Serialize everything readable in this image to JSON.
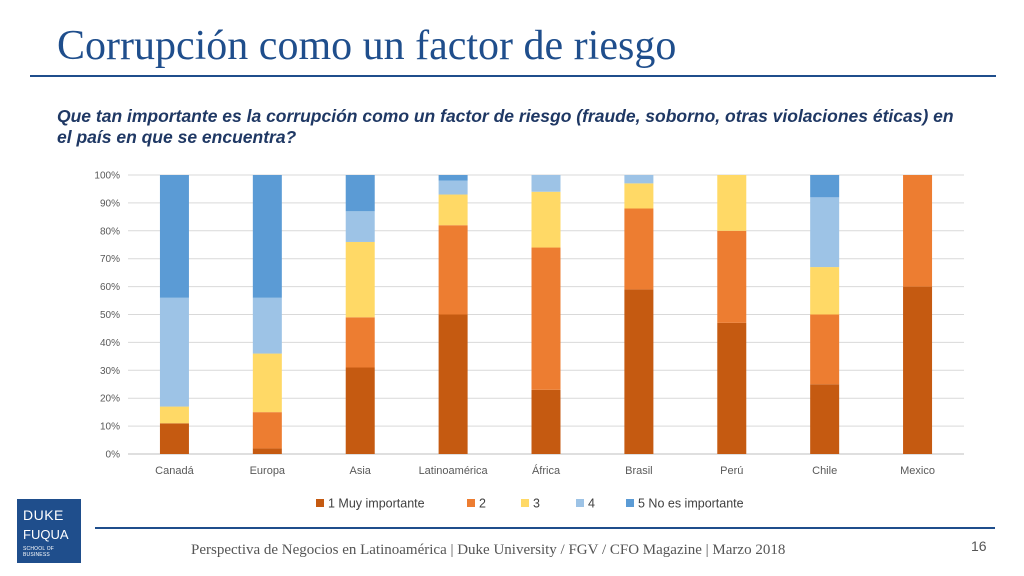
{
  "slide": {
    "title": "Corrupción como un factor de riesgo",
    "question": "Que tan importante es la corrupción como un factor de riesgo (fraude, soborno, otras violaciones éticas)  en el país en que se encuentra?",
    "footer": "Perspectiva de Negocios en Latinoamérica | Duke University / FGV / CFO Magazine | Marzo 2018",
    "page_number": "16",
    "logo": {
      "line1": "DUKE",
      "line2": "FUQUA",
      "line3": "SCHOOL OF BUSINESS"
    }
  },
  "colors": {
    "title": "#1f4e8c",
    "series": [
      "#c55a11",
      "#ed7d31",
      "#ffd966",
      "#9dc3e6",
      "#5b9bd5"
    ]
  },
  "chart_data": {
    "type": "bar",
    "stacked": true,
    "categories": [
      "Canadá",
      "Europa",
      "Asia",
      "Latinoamérica",
      "África",
      "Brasil",
      "Perú",
      "Chile",
      "Mexico"
    ],
    "series": [
      {
        "name": "1 Muy importante",
        "values": [
          11,
          2,
          31,
          50,
          23,
          59,
          47,
          25,
          60
        ]
      },
      {
        "name": "2",
        "values": [
          0,
          13,
          18,
          32,
          51,
          29,
          33,
          25,
          40
        ]
      },
      {
        "name": "3",
        "values": [
          6,
          21,
          27,
          11,
          20,
          9,
          20,
          17,
          0
        ]
      },
      {
        "name": "4",
        "values": [
          39,
          20,
          11,
          5,
          6,
          3,
          0,
          25,
          0
        ]
      },
      {
        "name": "5 No es importante",
        "values": [
          44,
          44,
          13,
          2,
          0,
          0,
          0,
          8,
          0
        ]
      }
    ],
    "y_ticks": [
      "0%",
      "10%",
      "20%",
      "30%",
      "40%",
      "50%",
      "60%",
      "70%",
      "80%",
      "90%",
      "100%"
    ],
    "ylim": [
      0,
      100
    ],
    "grid": true,
    "legend": "bottom"
  }
}
